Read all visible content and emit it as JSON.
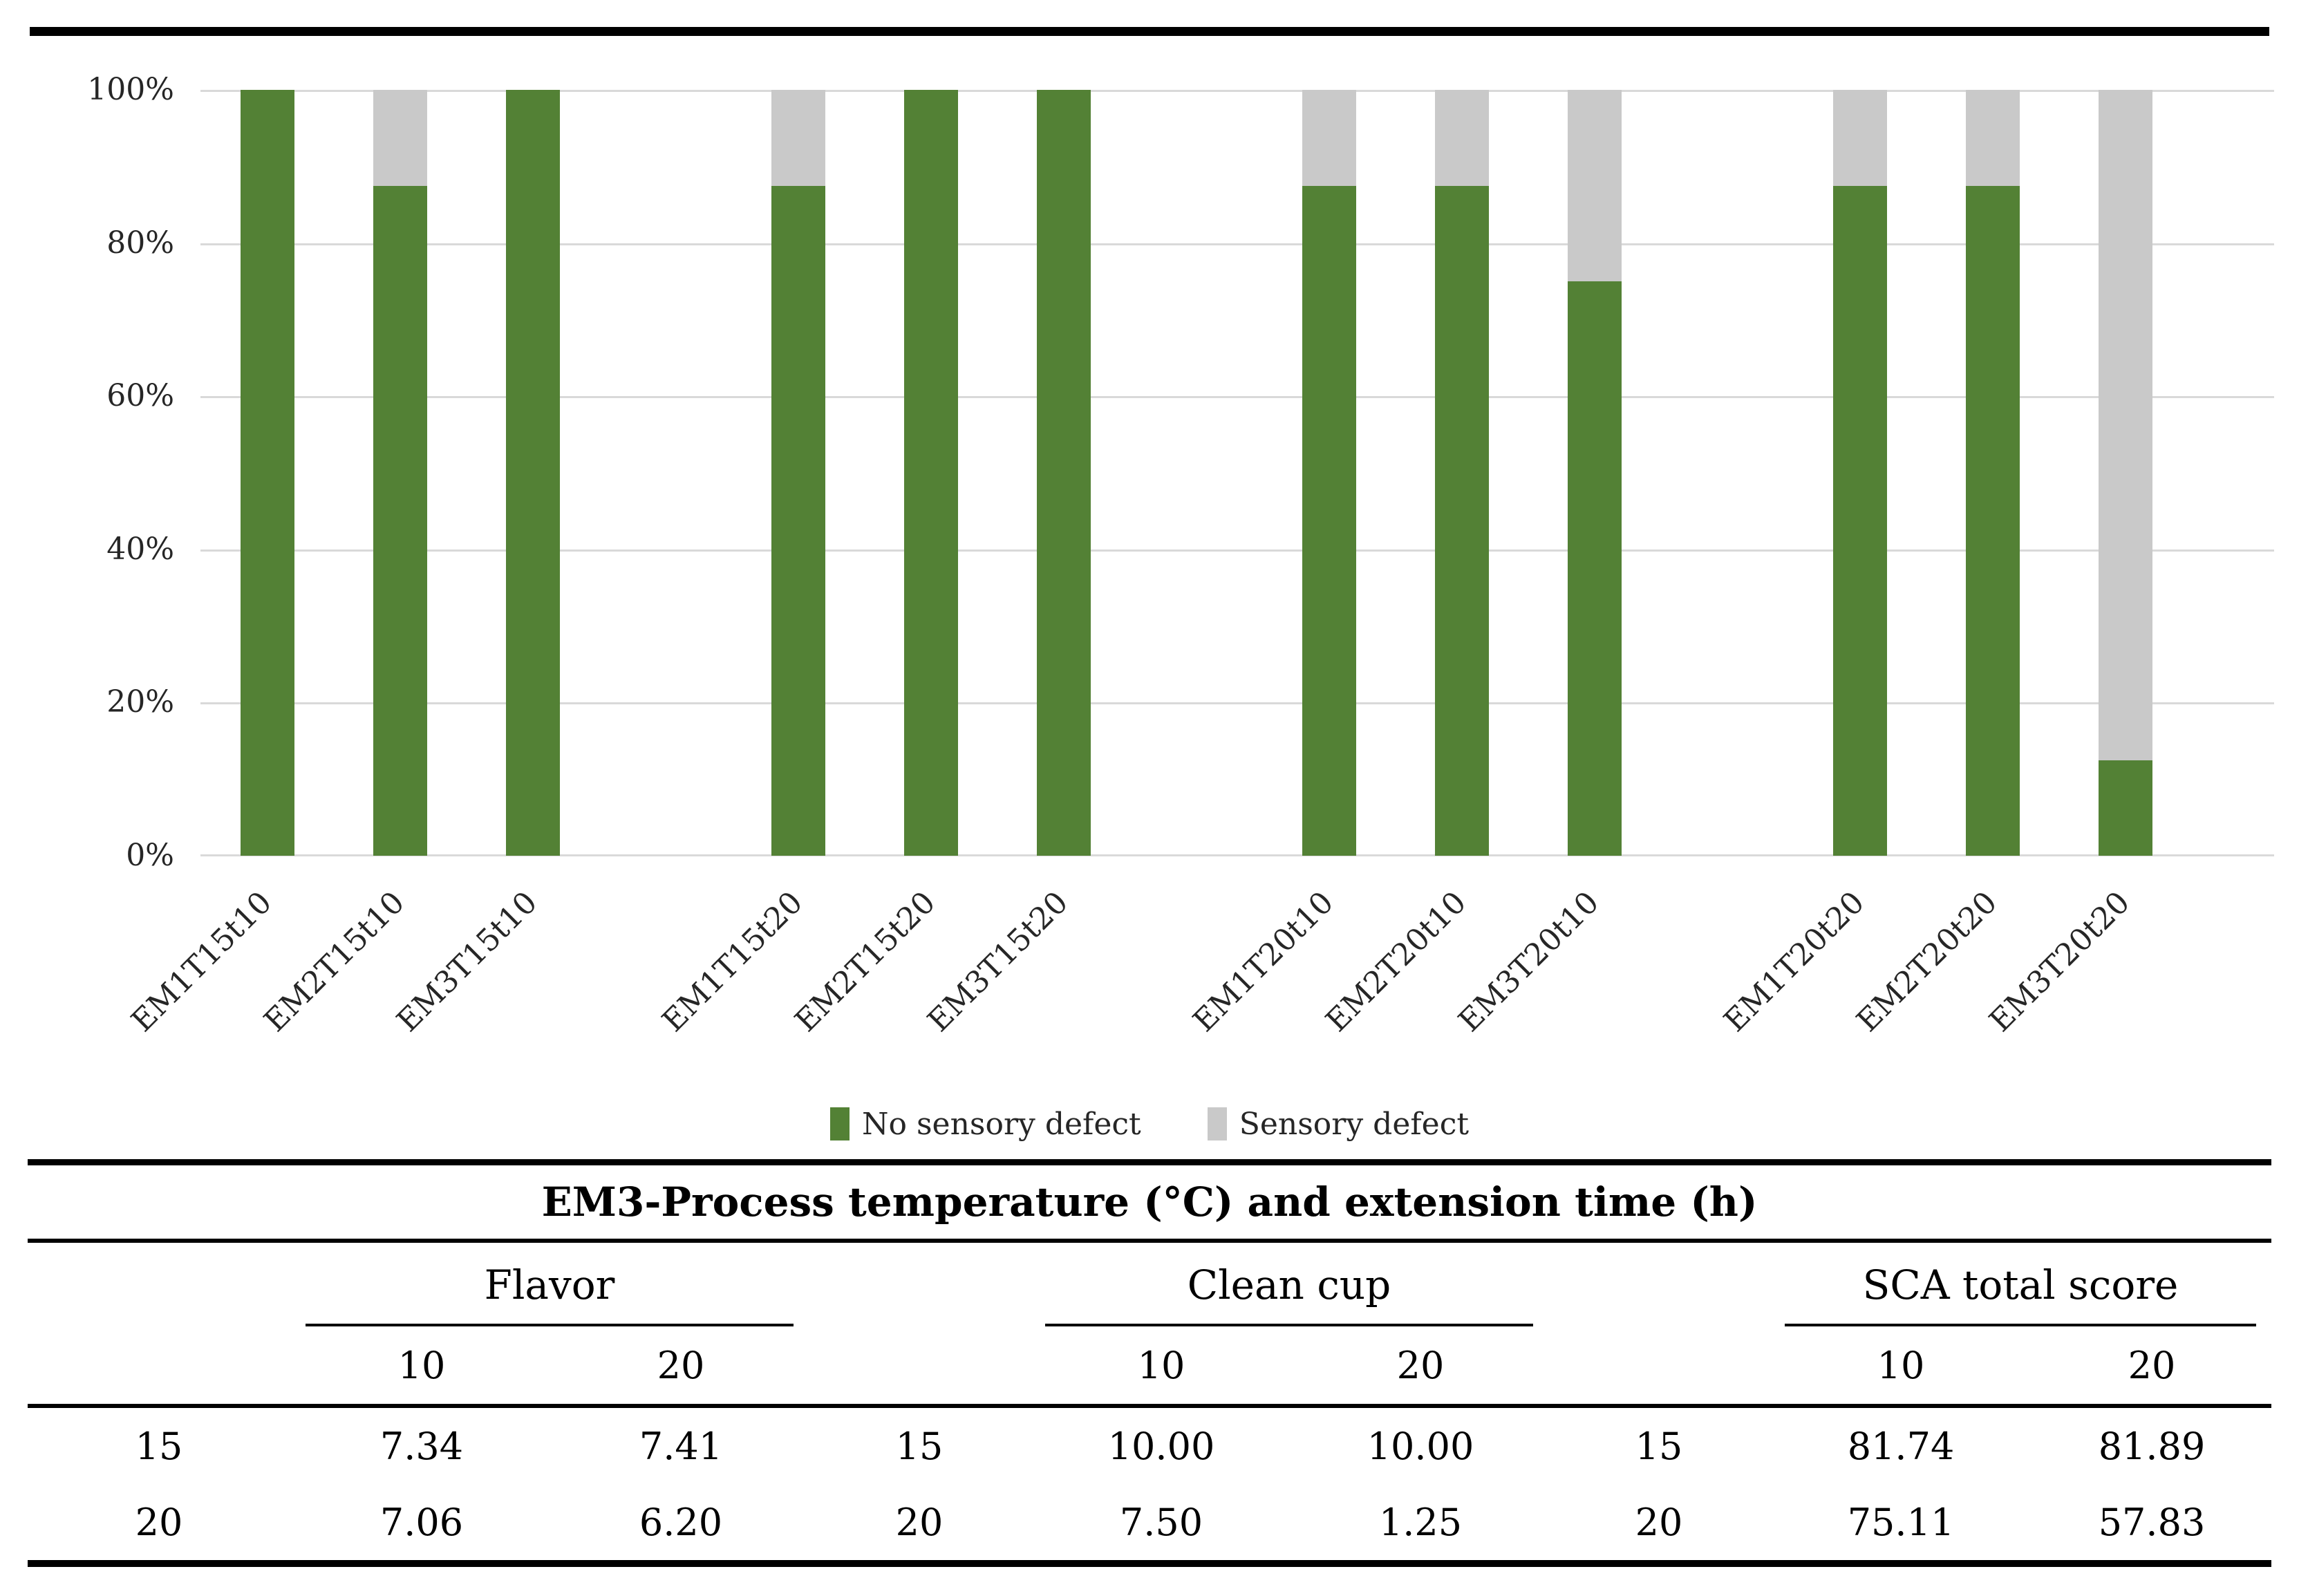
{
  "chart_data": {
    "type": "bar",
    "stacked": true,
    "title": "",
    "xlabel": "",
    "ylabel": "",
    "ylim": [
      0,
      100
    ],
    "yticks": [
      "0%",
      "20%",
      "40%",
      "60%",
      "80%",
      "100%"
    ],
    "grid": true,
    "legend_position": "bottom",
    "group_size": 3,
    "categories": [
      "EM1T15t10",
      "EM2T15t10",
      "EM3T15t10",
      "EM1T15t20",
      "EM2T15t20",
      "EM3T15t20",
      "EM1T20t10",
      "EM2T20t10",
      "EM3T20t10",
      "EM1T20t20",
      "EM2T20t20",
      "EM3T20t20"
    ],
    "series": [
      {
        "name": "No sensory defect",
        "color": "#538135",
        "values": [
          100,
          87.5,
          100,
          87.5,
          100,
          100,
          87.5,
          87.5,
          75,
          87.5,
          87.5,
          12.5
        ]
      },
      {
        "name": "Sensory defect",
        "color": "#c9c9c9",
        "values": [
          0,
          12.5,
          0,
          12.5,
          0,
          0,
          12.5,
          12.5,
          25,
          12.5,
          12.5,
          87.5
        ]
      }
    ],
    "gridline_color": "#d9d9d9"
  },
  "table": {
    "title": "EM3-Process temperature (°C) and extension time (h)",
    "groups": [
      {
        "label": "Flavor",
        "columns": [
          "10",
          "20"
        ]
      },
      {
        "label": "Clean cup",
        "columns": [
          "10",
          "20"
        ]
      },
      {
        "label": "SCA total score",
        "columns": [
          "10",
          "20"
        ]
      }
    ],
    "rows": [
      {
        "temp": "15",
        "values": [
          [
            "7.34",
            "7.41"
          ],
          [
            "10.00",
            "10.00"
          ],
          [
            "81.74",
            "81.89"
          ]
        ]
      },
      {
        "temp": "20",
        "values": [
          [
            "7.06",
            "6.20"
          ],
          [
            "7.50",
            "1.25"
          ],
          [
            "75.11",
            "57.83"
          ]
        ]
      }
    ]
  }
}
